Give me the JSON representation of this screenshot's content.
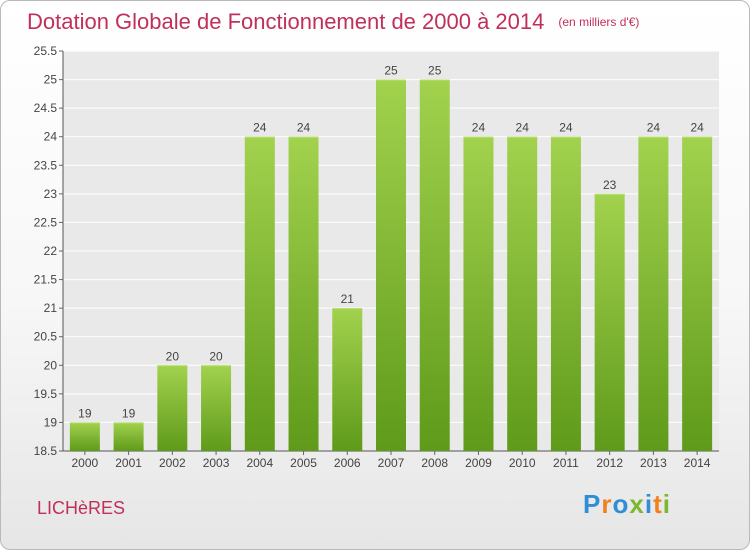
{
  "header": {
    "title": "Dotation Globale de Fonctionnement de 2000 à 2014",
    "unit": "(en milliers d'€)"
  },
  "footer": {
    "commune": "LICHèRES"
  },
  "logo": {
    "text": "Proxiti",
    "letters": [
      "P",
      "r",
      "o",
      "x",
      "i",
      "t",
      "i"
    ],
    "colors": [
      "#2e8fd6",
      "#f0821e",
      "#2e8fd6",
      "#7cb82f",
      "#2e8fd6",
      "#f0821e",
      "#7cb82f"
    ]
  },
  "chart_data": {
    "type": "bar",
    "title": "Dotation Globale de Fonctionnement de 2000 à 2014",
    "subtitle": "(en milliers d'€)",
    "categories": [
      "2000",
      "2001",
      "2002",
      "2003",
      "2004",
      "2005",
      "2006",
      "2007",
      "2008",
      "2009",
      "2010",
      "2011",
      "2012",
      "2013",
      "2014"
    ],
    "values": [
      19,
      19,
      20,
      20,
      24,
      24,
      21,
      25,
      25,
      24,
      24,
      24,
      23,
      24,
      24
    ],
    "ylim": [
      18.5,
      25.5
    ],
    "yticks": [
      "18.5",
      "19",
      "19.5",
      "20",
      "20.5",
      "21",
      "21.5",
      "22",
      "22.5",
      "23",
      "23.5",
      "24",
      "24.5",
      "25",
      "25.5"
    ],
    "grid": true,
    "bar_color": "#7cb82f",
    "data_labels": true
  }
}
